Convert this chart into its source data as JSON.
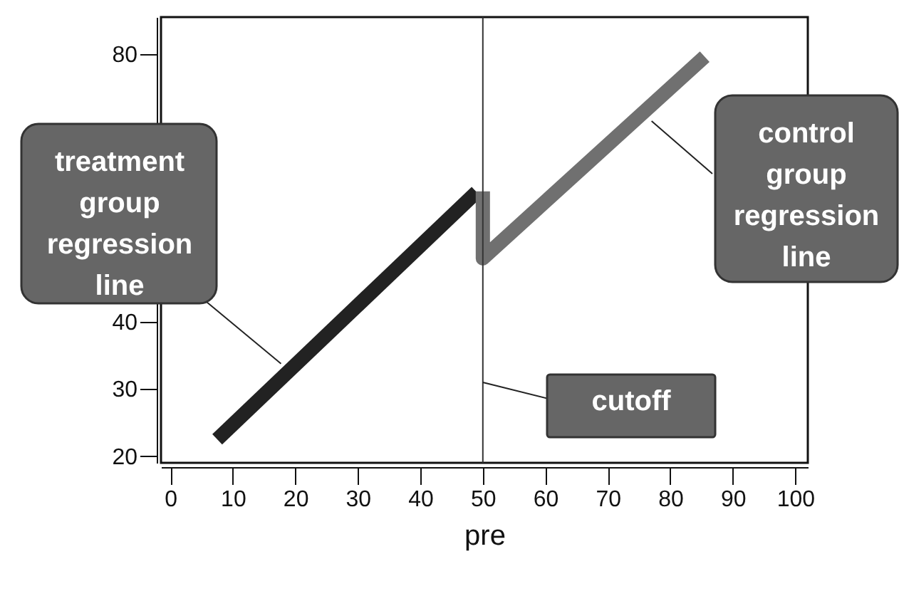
{
  "chart_data": {
    "type": "line",
    "xlabel": "pre",
    "xlim": [
      -1.5,
      102
    ],
    "ylim": [
      19,
      85.5
    ],
    "xticks": [
      0,
      10,
      20,
      30,
      40,
      50,
      60,
      70,
      80,
      90,
      100
    ],
    "yticks": [
      20,
      30,
      40,
      80
    ],
    "grid": false,
    "series": [
      {
        "color": "#222222",
        "x": [
          7.5,
          49
        ],
        "values": [
          22.5,
          59.4
        ]
      },
      {
        "color": "#707070",
        "x": [
          50,
          50,
          85.5
        ],
        "values": [
          59.5,
          49.5,
          79.6
        ]
      }
    ],
    "ref_lines": [
      {
        "axis": "x",
        "value": 50,
        "color": "#333333"
      }
    ],
    "annotations": [
      {
        "text": "treatment group regression line",
        "x": 17.7,
        "y": 33.8
      },
      {
        "text": "control group regression line",
        "x": 77,
        "y": 70
      },
      {
        "text": "cutoff",
        "x": 50,
        "y": 31
      }
    ]
  }
}
